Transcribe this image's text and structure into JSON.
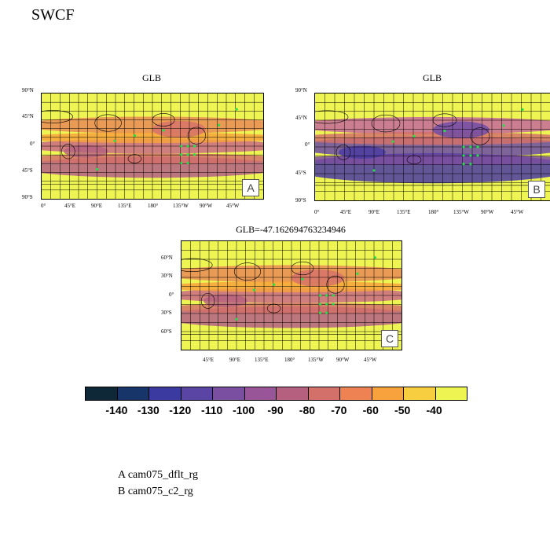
{
  "title": "SWCF",
  "panels": [
    {
      "id": "A",
      "title": "GLB",
      "tag": "A",
      "lat_ticks": [
        "90°N",
        "45°N",
        "0°",
        "45°S",
        "90°S"
      ],
      "lon_ticks": [
        "0°",
        "45°E",
        "90°E",
        "135°E",
        "180°",
        "135°W",
        "90°W",
        "45°W"
      ]
    },
    {
      "id": "B",
      "title": "GLB",
      "tag": "B",
      "lat_ticks": [
        "90°N",
        "45°N",
        "0°",
        "45°S",
        "90°S"
      ],
      "lon_ticks": [
        "0°",
        "45°E",
        "90°E",
        "135°E",
        "180°",
        "135°W",
        "90°W",
        "45°W"
      ]
    },
    {
      "id": "C",
      "title": "GLB=-47.162694763234946",
      "tag": "C",
      "lat_ticks": [
        "60°N",
        "30°N",
        "0°",
        "30°S",
        "60°S"
      ],
      "lon_ticks": [
        "45°E",
        "90°E",
        "135°E",
        "180°",
        "135°W",
        "90°W",
        "45°W"
      ]
    }
  ],
  "colorbar": {
    "labels": [
      "-140",
      "-130",
      "-120",
      "-110",
      "-100",
      "-90",
      "-80",
      "-70",
      "-60",
      "-50",
      "-40"
    ],
    "colors": [
      "#0e2838",
      "#18356a",
      "#3b3aa0",
      "#5a45a5",
      "#7a4ea0",
      "#985598",
      "#b5607f",
      "#d4706a",
      "#ee8253",
      "#f7a23c",
      "#f7ce3f",
      "#eef552"
    ]
  },
  "legend": [
    "A  cam075_dflt_rg",
    "B  cam075_c2_rg"
  ]
}
